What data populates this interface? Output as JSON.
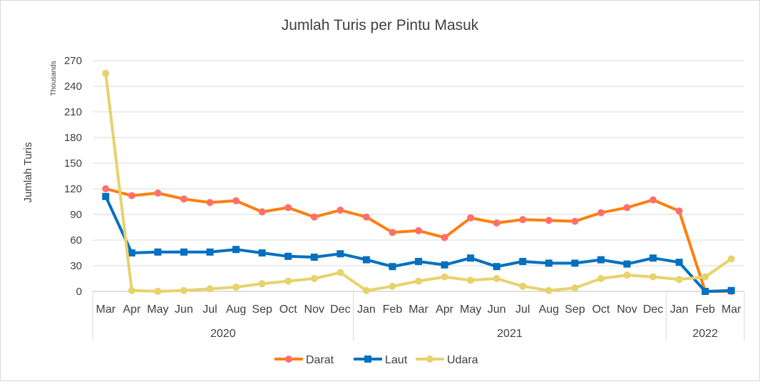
{
  "chart_data": {
    "type": "line",
    "title": "Jumlah Turis per Pintu Masuk",
    "ylabel": "Jumlah Turis",
    "yunits": "Thousands",
    "ylim": [
      0,
      270
    ],
    "yticks": [
      "0",
      "30",
      "60",
      "90",
      "120",
      "150",
      "180",
      "210",
      "240",
      "270"
    ],
    "categories": [
      "Mar",
      "Apr",
      "May",
      "Jun",
      "Jul",
      "Aug",
      "Sep",
      "Oct",
      "Nov",
      "Dec",
      "Jan",
      "Feb",
      "Mar",
      "Apr",
      "May",
      "Jun",
      "Jul",
      "Aug",
      "Sep",
      "Oct",
      "Nov",
      "Dec",
      "Jan",
      "Feb",
      "Mar"
    ],
    "years": [
      {
        "label": "2020",
        "count": 10
      },
      {
        "label": "2021",
        "count": 12
      },
      {
        "label": "2022",
        "count": 3
      }
    ],
    "grid": true,
    "legend_position": "bottom",
    "series": [
      {
        "name": "Darat",
        "color": "#ff7f0e",
        "marker_color": "#ff6f6f",
        "marker": "circle",
        "values": [
          120,
          112,
          115,
          108,
          104,
          106,
          93,
          98,
          87,
          95,
          87,
          69,
          71,
          63,
          86,
          80,
          84,
          83,
          82,
          92,
          98,
          107,
          94,
          0,
          0
        ]
      },
      {
        "name": "Laut",
        "color": "#0070c0",
        "marker_color": "#0070c0",
        "marker": "square",
        "values": [
          111,
          45,
          46,
          46,
          46,
          49,
          45,
          41,
          40,
          44,
          37,
          29,
          35,
          31,
          39,
          29,
          35,
          33,
          33,
          37,
          32,
          39,
          34,
          0,
          1
        ]
      },
      {
        "name": "Udara",
        "color": "#e8d26b",
        "marker_color": "#e8d26b",
        "marker": "circle",
        "values": [
          255,
          1,
          0,
          1,
          3,
          5,
          9,
          12,
          15,
          22,
          1,
          6,
          12,
          17,
          13,
          15,
          6,
          1,
          4,
          15,
          19,
          17,
          14,
          17,
          38
        ]
      }
    ]
  }
}
